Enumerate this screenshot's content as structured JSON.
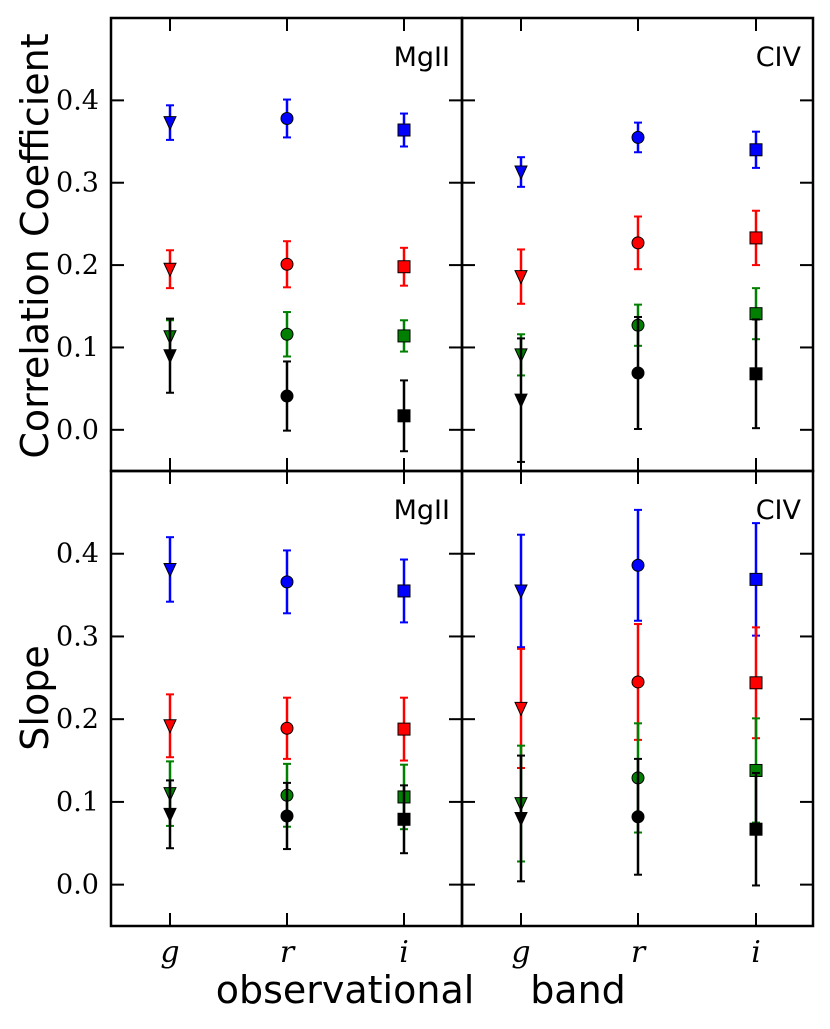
{
  "chart_data": {
    "type": "scatter",
    "xlabel_left": "observational",
    "xlabel_right": "band",
    "categories": [
      "g",
      "r",
      "i"
    ],
    "series_colors": {
      "blue": "#0000ff",
      "red": "#ff0000",
      "green": "#007f00",
      "black": "#000000"
    },
    "marker_by_band": {
      "g": "triangle-down",
      "r": "circle",
      "i": "square"
    },
    "yticks": [
      "0.0",
      "0.1",
      "0.2",
      "0.3",
      "0.4"
    ],
    "rows": [
      {
        "ylabel": "Correlation Coefficient",
        "ylim": [
          -0.05,
          0.5
        ]
      },
      {
        "ylabel": "Slope",
        "ylim": [
          -0.05,
          0.5
        ]
      }
    ],
    "panels": [
      {
        "row": 0,
        "col": 0,
        "label": "MgII",
        "series": [
          {
            "color": "blue",
            "values": [
              0.373,
              0.378,
              0.364
            ],
            "err": [
              0.021,
              0.023,
              0.02
            ]
          },
          {
            "color": "red",
            "values": [
              0.195,
              0.201,
              0.198
            ],
            "err": [
              0.023,
              0.028,
              0.023
            ]
          },
          {
            "color": "green",
            "values": [
              0.113,
              0.116,
              0.114
            ],
            "err": [
              0.02,
              0.027,
              0.019
            ]
          },
          {
            "color": "black",
            "values": [
              0.09,
              0.041,
              0.017
            ],
            "err": [
              0.045,
              0.042,
              0.043
            ]
          }
        ]
      },
      {
        "row": 0,
        "col": 1,
        "label": "CIV",
        "series": [
          {
            "color": "blue",
            "values": [
              0.313,
              0.355,
              0.34
            ],
            "err": [
              0.018,
              0.018,
              0.022
            ]
          },
          {
            "color": "red",
            "values": [
              0.186,
              0.227,
              0.233
            ],
            "err": [
              0.033,
              0.032,
              0.033
            ]
          },
          {
            "color": "green",
            "values": [
              0.091,
              0.127,
              0.141
            ],
            "err": [
              0.025,
              0.025,
              0.031
            ]
          },
          {
            "color": "black",
            "values": [
              0.036,
              0.069,
              0.068
            ],
            "err": [
              0.075,
              0.068,
              0.066
            ]
          }
        ]
      },
      {
        "row": 1,
        "col": 0,
        "label": "MgII",
        "series": [
          {
            "color": "blue",
            "values": [
              0.381,
              0.366,
              0.355
            ],
            "err": [
              0.039,
              0.038,
              0.038
            ]
          },
          {
            "color": "red",
            "values": [
              0.192,
              0.189,
              0.188
            ],
            "err": [
              0.038,
              0.037,
              0.038
            ]
          },
          {
            "color": "green",
            "values": [
              0.11,
              0.108,
              0.106
            ],
            "err": [
              0.039,
              0.038,
              0.039
            ]
          },
          {
            "color": "black",
            "values": [
              0.085,
              0.083,
              0.079
            ],
            "err": [
              0.041,
              0.04,
              0.041
            ]
          }
        ]
      },
      {
        "row": 1,
        "col": 1,
        "label": "CIV",
        "series": [
          {
            "color": "blue",
            "values": [
              0.355,
              0.386,
              0.369
            ],
            "err": [
              0.068,
              0.067,
              0.068
            ]
          },
          {
            "color": "red",
            "values": [
              0.213,
              0.245,
              0.244
            ],
            "err": [
              0.072,
              0.07,
              0.067
            ]
          },
          {
            "color": "green",
            "values": [
              0.098,
              0.129,
              0.138
            ],
            "err": [
              0.07,
              0.066,
              0.063
            ]
          },
          {
            "color": "black",
            "values": [
              0.08,
              0.082,
              0.067
            ],
            "err": [
              0.076,
              0.07,
              0.068
            ]
          }
        ]
      }
    ]
  }
}
